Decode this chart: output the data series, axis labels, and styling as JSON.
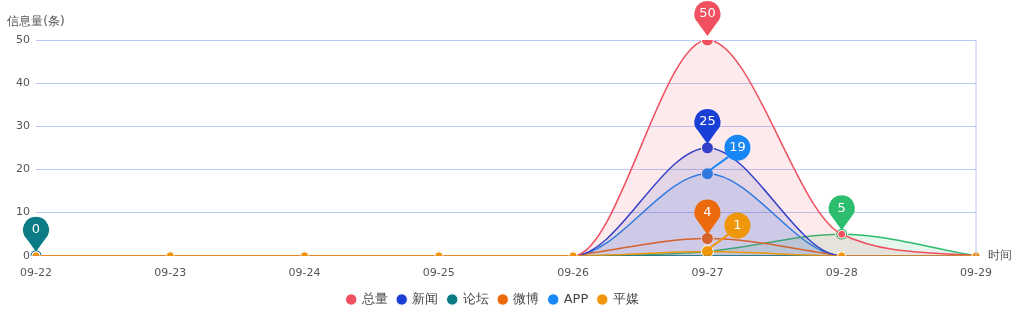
{
  "chart_data": {
    "type": "line",
    "xlabel": "时间",
    "ylabel": "信息量(条)",
    "categories": [
      "09-22",
      "09-23",
      "09-24",
      "09-25",
      "09-26",
      "09-27",
      "09-28",
      "09-29"
    ],
    "ylim": [
      0,
      50
    ],
    "yticks": [
      0,
      10,
      20,
      30,
      40,
      50
    ],
    "grid": "y",
    "legend": "bottom",
    "marker": "circle",
    "line_style": "solid",
    "series": [
      {
        "name": "总量",
        "type": "area",
        "color": "#f0505f",
        "values": [
          0,
          0,
          0,
          0,
          0,
          50,
          5,
          0
        ],
        "value_labels": [
          null,
          null,
          null,
          null,
          null,
          "50",
          null,
          null
        ]
      },
      {
        "name": "新闻",
        "type": "area",
        "color": "#1a3fd6",
        "values": [
          0,
          0,
          0,
          0,
          0,
          25,
          0,
          0
        ],
        "value_labels": [
          null,
          null,
          null,
          null,
          null,
          "25",
          null,
          null
        ]
      },
      {
        "name": "论坛",
        "type": "line",
        "color": "#0b7b86",
        "values": [
          0,
          null,
          null,
          null,
          0,
          0,
          0,
          null
        ],
        "value_labels": [
          "0",
          null,
          null,
          null,
          null,
          null,
          null,
          null
        ]
      },
      {
        "name": "微博",
        "type": "line",
        "color": "#ec6a0c",
        "values": [
          null,
          null,
          null,
          null,
          0,
          4,
          0,
          null
        ],
        "value_labels": [
          null,
          null,
          null,
          null,
          null,
          "4",
          null,
          null
        ]
      },
      {
        "type": "area",
        "color": "#2dbd6e",
        "values": [
          0,
          0,
          0,
          0,
          0,
          1,
          5,
          0
        ],
        "value_labels": [
          null,
          null,
          null,
          null,
          null,
          null,
          "5",
          null
        ]
      },
      {
        "name": "APP",
        "type": "area",
        "color": "#1787f5",
        "values": [
          0,
          0,
          0,
          0,
          0,
          19,
          0,
          0
        ],
        "value_labels": [
          null,
          null,
          null,
          null,
          null,
          "19",
          null,
          null
        ]
      },
      {
        "name": "平媒",
        "type": "line",
        "color": "#f0960a",
        "values": [
          0,
          0,
          0,
          0,
          0,
          1,
          0,
          0
        ],
        "value_labels": [
          null,
          null,
          null,
          null,
          null,
          "1",
          null,
          null
        ]
      }
    ]
  }
}
